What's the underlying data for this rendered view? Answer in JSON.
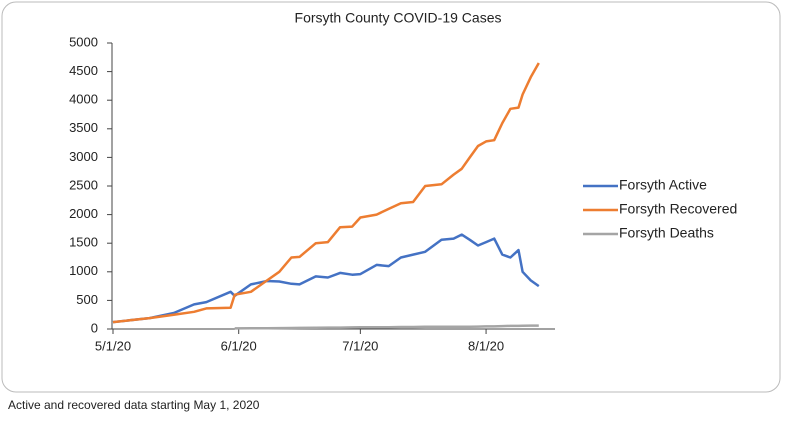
{
  "chart_data": {
    "type": "line",
    "title": "Forsyth County COVID-19 Cases",
    "x": [
      "2020-05-01",
      "2020-05-10",
      "2020-05-16",
      "2020-05-21",
      "2020-05-24",
      "2020-05-30",
      "2020-05-31",
      "2020-06-04",
      "2020-06-08",
      "2020-06-11",
      "2020-06-14",
      "2020-06-16",
      "2020-06-20",
      "2020-06-23",
      "2020-06-26",
      "2020-06-29",
      "2020-07-01",
      "2020-07-05",
      "2020-07-08",
      "2020-07-11",
      "2020-07-14",
      "2020-07-17",
      "2020-07-21",
      "2020-07-24",
      "2020-07-26",
      "2020-07-28",
      "2020-07-30",
      "2020-08-01",
      "2020-08-03",
      "2020-08-05",
      "2020-08-07",
      "2020-08-09",
      "2020-08-10",
      "2020-08-12",
      "2020-08-14"
    ],
    "series": [
      {
        "name": "Forsyth Active",
        "color": "#4472c4",
        "values": [
          120,
          190,
          280,
          430,
          470,
          650,
          580,
          780,
          840,
          830,
          790,
          780,
          920,
          900,
          980,
          950,
          960,
          1120,
          1100,
          1250,
          1300,
          1350,
          1560,
          1580,
          1650,
          1560,
          1460,
          1520,
          1580,
          1300,
          1250,
          1380,
          1000,
          850,
          750
        ]
      },
      {
        "name": "Forsyth Recovered",
        "color": "#ed7d31",
        "values": [
          120,
          190,
          250,
          300,
          360,
          370,
          600,
          650,
          850,
          1000,
          1250,
          1260,
          1500,
          1520,
          1780,
          1790,
          1950,
          2000,
          2100,
          2200,
          2220,
          2500,
          2530,
          2700,
          2800,
          3000,
          3200,
          3280,
          3300,
          3600,
          3850,
          3870,
          4100,
          4400,
          4650
        ]
      },
      {
        "name": "Forsyth Deaths",
        "color": "#a5a5a5",
        "values": [
          null,
          null,
          null,
          null,
          null,
          null,
          10,
          12,
          14,
          16,
          18,
          20,
          22,
          25,
          25,
          28,
          30,
          30,
          32,
          35,
          35,
          38,
          38,
          40,
          40,
          40,
          42,
          45,
          45,
          50,
          55,
          55,
          58,
          60,
          60
        ]
      }
    ],
    "xlim": [
      "2020-05-01",
      "2020-08-18"
    ],
    "xticks": [
      {
        "value": "2020-05-01",
        "label": "5/1/20"
      },
      {
        "value": "2020-06-01",
        "label": "6/1/20"
      },
      {
        "value": "2020-07-01",
        "label": "7/1/20"
      },
      {
        "value": "2020-08-01",
        "label": "8/1/20"
      }
    ],
    "ylim": [
      0,
      5000
    ],
    "yticks": [
      0,
      500,
      1000,
      1500,
      2000,
      2500,
      3000,
      3500,
      4000,
      4500,
      5000
    ],
    "grid": false,
    "legend": "right"
  },
  "footnote": "Active and recovered data starting May 1, 2020"
}
